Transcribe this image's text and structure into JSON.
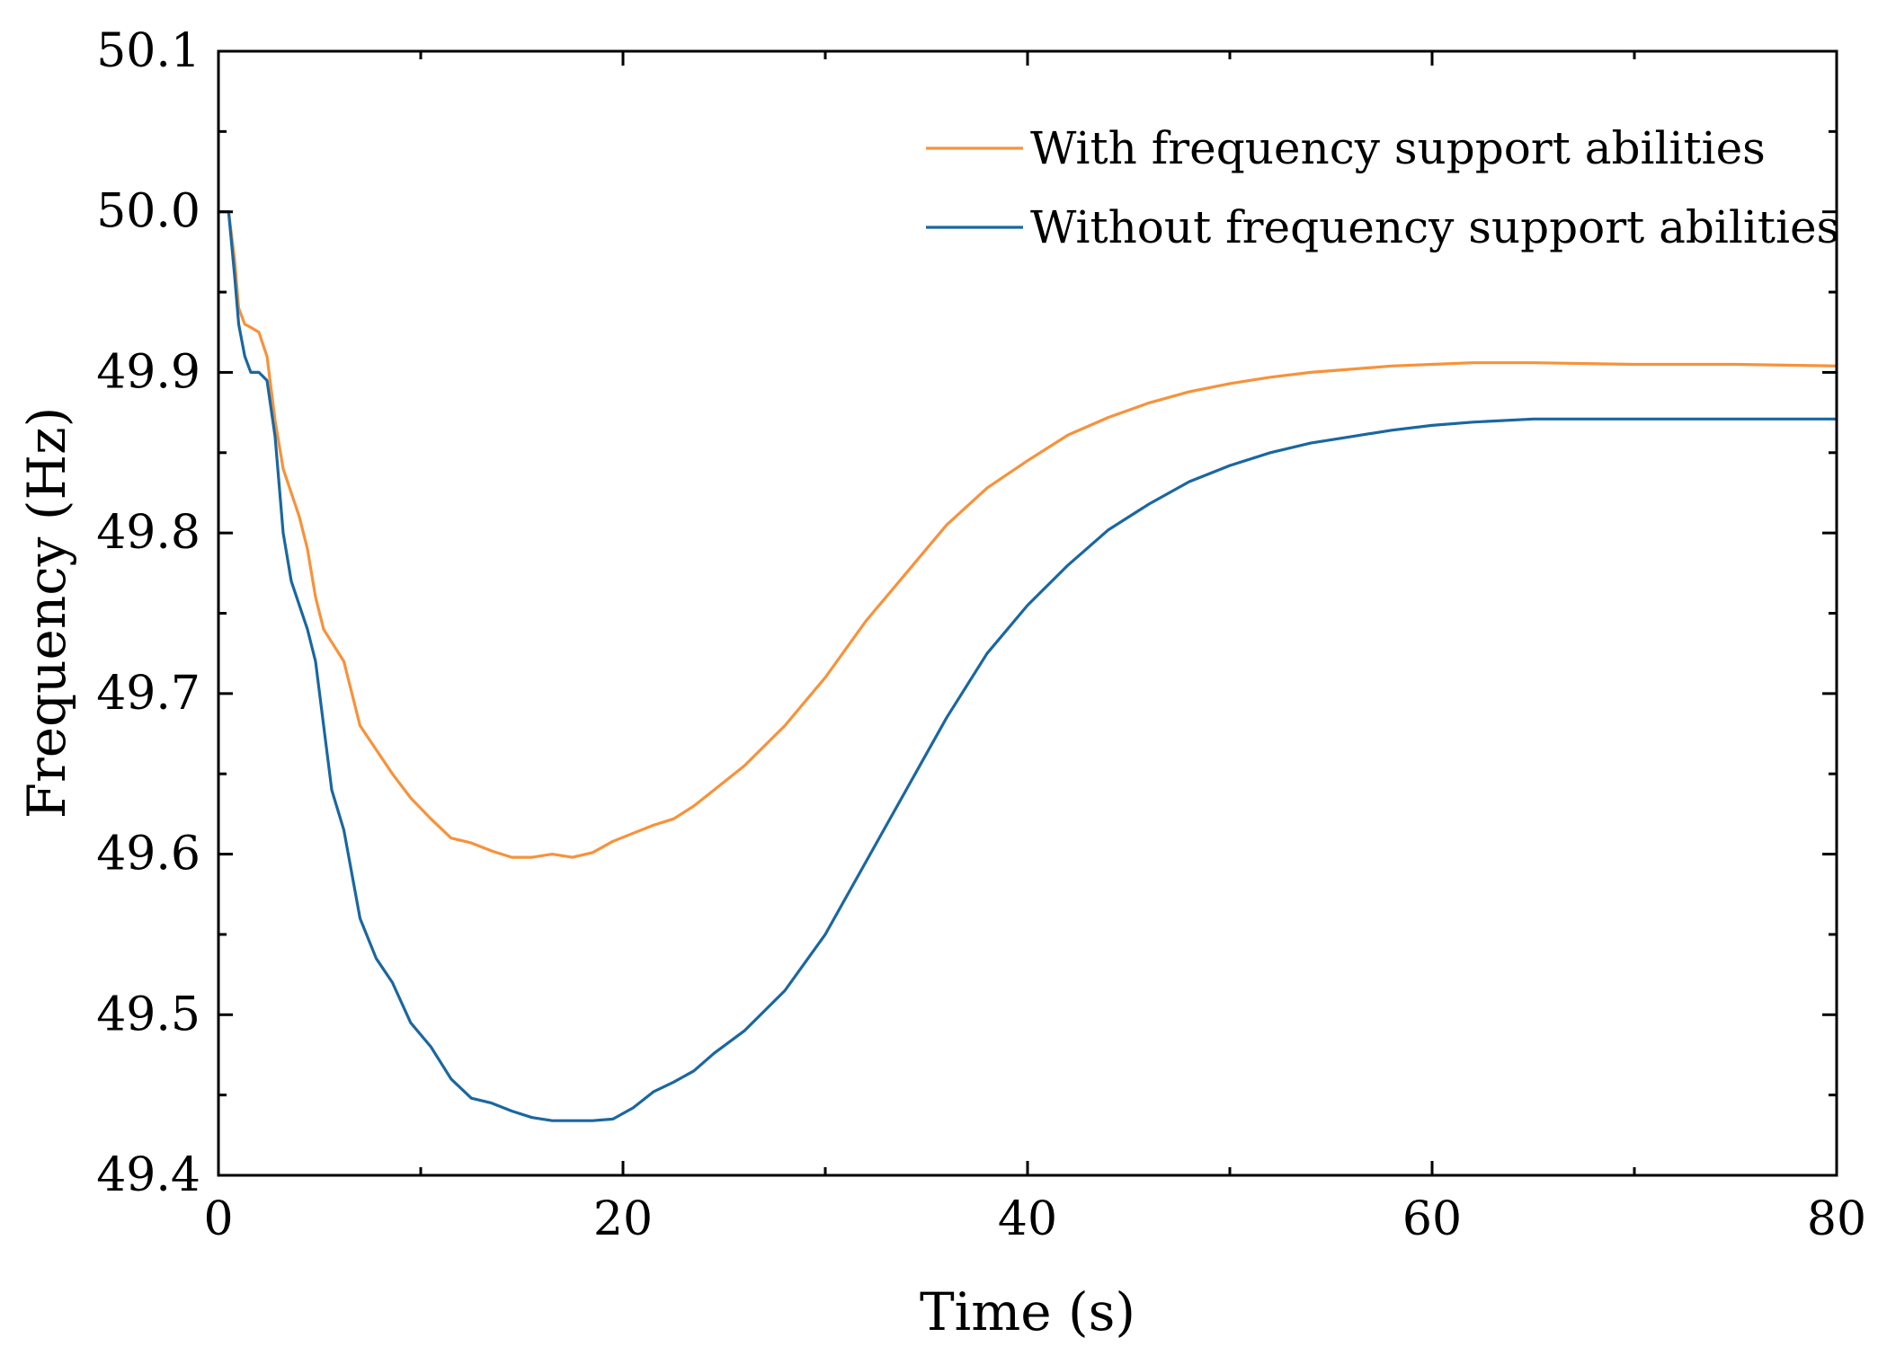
{
  "chart_data": {
    "type": "line",
    "title": "",
    "xlabel": "Time (s)",
    "ylabel": "Frequency (Hz)",
    "xlim": [
      0,
      80
    ],
    "ylim": [
      49.4,
      50.1
    ],
    "xticks": [
      0,
      20,
      40,
      60,
      80
    ],
    "xtick_labels": [
      "0",
      "20",
      "40",
      "60",
      "80"
    ],
    "yticks": [
      49.4,
      49.5,
      49.6,
      49.7,
      49.8,
      49.9,
      50.0,
      50.1
    ],
    "ytick_labels": [
      "49.4",
      "49.5",
      "49.6",
      "49.7",
      "49.8",
      "49.9",
      "50.0",
      "50.1"
    ],
    "grid": false,
    "legend_position": "top-right",
    "series": [
      {
        "name": "With frequency support abilities",
        "color": "#f7923a",
        "x": [
          0,
          0.5,
          0.8,
          1.0,
          1.3,
          1.6,
          2.0,
          2.4,
          2.8,
          3.2,
          3.6,
          4.0,
          4.4,
          4.8,
          5.2,
          5.6,
          6.2,
          7.0,
          7.8,
          8.6,
          9.5,
          10.5,
          11.5,
          12.5,
          13.5,
          14.5,
          15.5,
          16.5,
          17.5,
          18.5,
          19.5,
          20.5,
          21.5,
          22.5,
          23.5,
          24.5,
          26,
          28,
          30,
          32,
          34,
          36,
          38,
          40,
          42,
          44,
          46,
          48,
          50,
          52,
          54,
          56,
          58,
          60,
          62,
          65,
          70,
          75,
          80
        ],
        "y": [
          50.0,
          50.0,
          49.97,
          49.94,
          49.93,
          49.928,
          49.925,
          49.91,
          49.87,
          49.84,
          49.825,
          49.81,
          49.79,
          49.76,
          49.74,
          49.732,
          49.72,
          49.68,
          49.665,
          49.65,
          49.635,
          49.622,
          49.61,
          49.607,
          49.602,
          49.598,
          49.598,
          49.6,
          49.598,
          49.601,
          49.608,
          49.613,
          49.618,
          49.622,
          49.63,
          49.64,
          49.655,
          49.68,
          49.71,
          49.745,
          49.775,
          49.805,
          49.828,
          49.845,
          49.861,
          49.872,
          49.881,
          49.888,
          49.893,
          49.897,
          49.9,
          49.902,
          49.904,
          49.905,
          49.906,
          49.906,
          49.905,
          49.905,
          49.904
        ]
      },
      {
        "name": "Without frequency support abilities",
        "color": "#1a67a0",
        "x": [
          0,
          0.5,
          0.8,
          1.0,
          1.3,
          1.6,
          2.0,
          2.4,
          2.8,
          3.2,
          3.6,
          4.0,
          4.4,
          4.8,
          5.2,
          5.6,
          6.2,
          7.0,
          7.8,
          8.6,
          9.5,
          10.5,
          11.5,
          12.5,
          13.5,
          14.5,
          15.5,
          16.5,
          17.5,
          18.5,
          19.5,
          20.5,
          21.5,
          22.5,
          23.5,
          24.5,
          26,
          28,
          30,
          32,
          34,
          36,
          38,
          40,
          42,
          44,
          46,
          48,
          50,
          52,
          54,
          56,
          58,
          60,
          62,
          65,
          70,
          75,
          80
        ],
        "y": [
          50.0,
          50.0,
          49.96,
          49.93,
          49.91,
          49.9,
          49.9,
          49.895,
          49.86,
          49.8,
          49.77,
          49.755,
          49.74,
          49.72,
          49.68,
          49.64,
          49.615,
          49.56,
          49.535,
          49.52,
          49.495,
          49.48,
          49.46,
          49.448,
          49.445,
          49.44,
          49.436,
          49.434,
          49.434,
          49.434,
          49.435,
          49.442,
          49.452,
          49.458,
          49.465,
          49.476,
          49.49,
          49.515,
          49.55,
          49.595,
          49.64,
          49.685,
          49.725,
          49.755,
          49.78,
          49.802,
          49.818,
          49.832,
          49.842,
          49.85,
          49.856,
          49.86,
          49.864,
          49.867,
          49.869,
          49.871,
          49.871,
          49.871,
          49.871
        ]
      }
    ]
  }
}
